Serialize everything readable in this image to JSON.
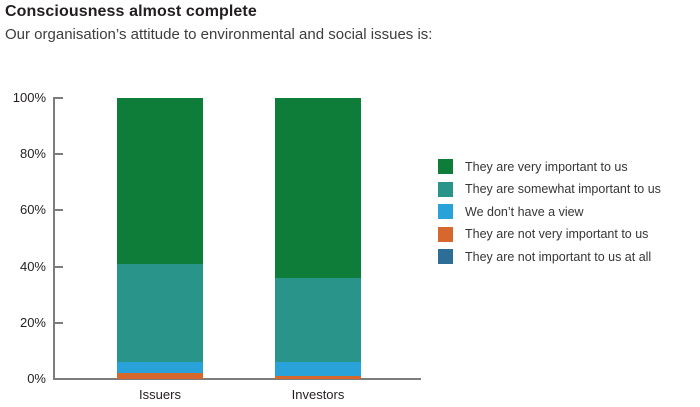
{
  "header": {
    "title": "Consciousness almost complete",
    "subtitle": "Our organisation’s attitude to environmental and social issues is:"
  },
  "chart_data": {
    "type": "bar",
    "stacked": true,
    "title": "Consciousness almost complete",
    "subtitle": "Our organisation’s attitude to environmental and social issues is:",
    "categories": [
      "Issuers",
      "Investors"
    ],
    "series": [
      {
        "name": "They are very important to us",
        "color": "#0e7d3a",
        "values": [
          59,
          64
        ]
      },
      {
        "name": "They are somewhat important to us",
        "color": "#28948a",
        "values": [
          35,
          30
        ]
      },
      {
        "name": "We don’t have a view",
        "color": "#29a1d9",
        "values": [
          4,
          5
        ]
      },
      {
        "name": "They are not very important to us",
        "color": "#d7682d",
        "values": [
          2,
          1
        ]
      },
      {
        "name": "They are not important to us at all",
        "color": "#2d6e96",
        "values": [
          0,
          0
        ]
      }
    ],
    "xlabel": "",
    "ylabel": "",
    "ylim": [
      0,
      100
    ],
    "yticks": [
      0,
      20,
      40,
      60,
      80,
      100
    ],
    "ytick_suffix": "%",
    "grid": false,
    "legend_position": "right",
    "axis_color": "#7d7d7d"
  },
  "layout_colors": {
    "title_text": "#231f20",
    "axis": "#7d7d7d"
  }
}
